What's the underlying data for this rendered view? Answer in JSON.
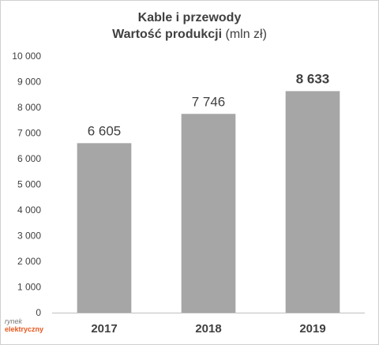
{
  "chart_data": {
    "type": "bar",
    "title": "Kable i przewody",
    "subtitle_bold": "Wartość produkcji",
    "subtitle_unit": " (mln zł)",
    "categories": [
      "2017",
      "2018",
      "2019"
    ],
    "values": [
      6605,
      7746,
      8633
    ],
    "value_labels": [
      "6 605",
      "7 746",
      "8 633"
    ],
    "highlighted_index": 2,
    "ylim": [
      0,
      10000
    ],
    "yticks": [
      0,
      1000,
      2000,
      3000,
      4000,
      5000,
      6000,
      7000,
      8000,
      9000,
      10000
    ],
    "ytick_labels": [
      "0",
      "1 000",
      "2 000",
      "3 000",
      "4 000",
      "5 000",
      "6 000",
      "7 000",
      "8 000",
      "9 000",
      "10 000"
    ],
    "grid": false,
    "bar_color": "#a6a6a6",
    "text_color": "#404040"
  },
  "logo": {
    "line1": "rynek",
    "line2": "elektryczny"
  }
}
